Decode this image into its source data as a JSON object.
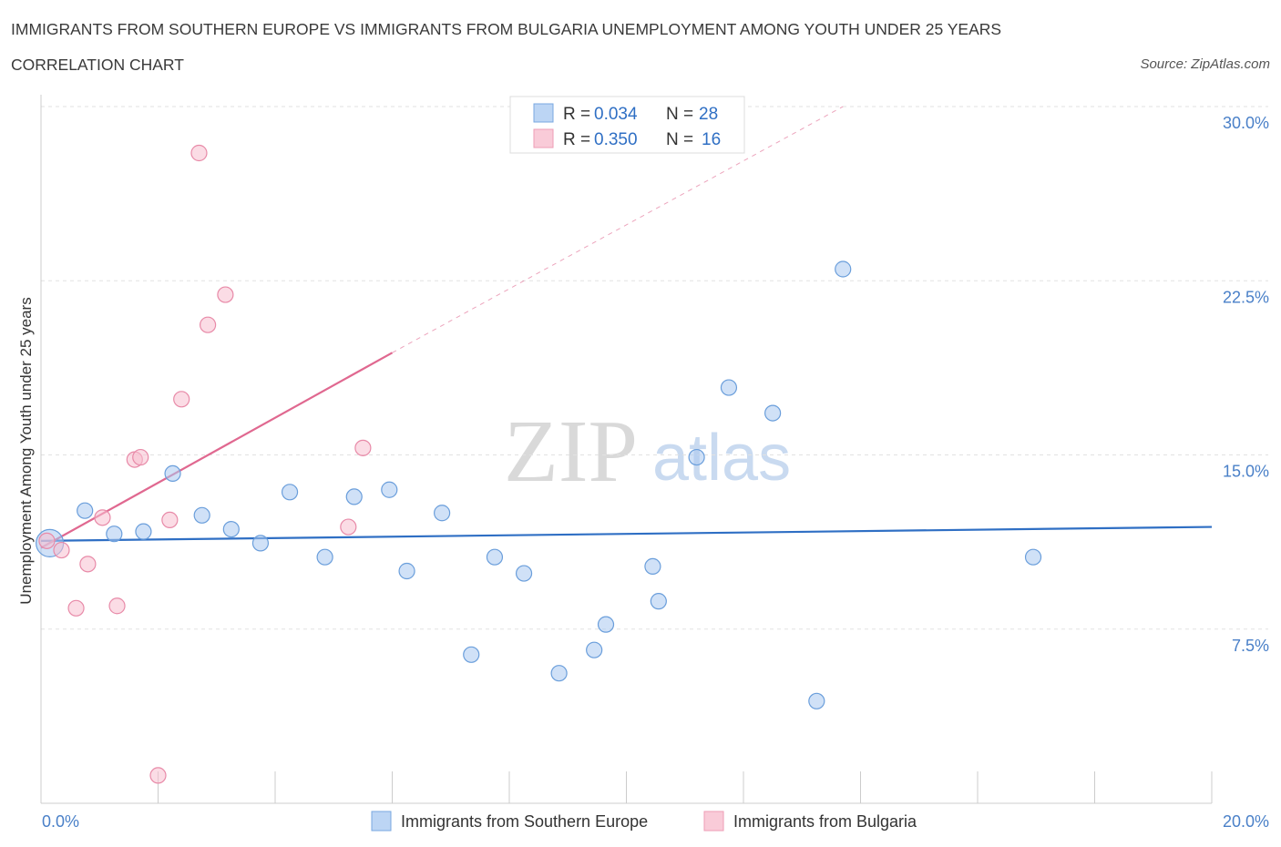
{
  "header": {
    "title": "IMMIGRANTS FROM SOUTHERN EUROPE VS IMMIGRANTS FROM BULGARIA UNEMPLOYMENT AMONG YOUTH UNDER 25 YEARS",
    "subtitle": "CORRELATION CHART",
    "source": "Source: ZipAtlas.com"
  },
  "watermark": {
    "zip": "ZIP",
    "atlas": "atlas"
  },
  "chart_data": {
    "type": "scatter",
    "title": "IMMIGRANTS FROM SOUTHERN EUROPE VS IMMIGRANTS FROM BULGARIA UNEMPLOYMENT AMONG YOUTH UNDER 25 YEARS",
    "xlabel": "",
    "ylabel": "Unemployment Among Youth under 25 years",
    "xlim": [
      0,
      20
    ],
    "ylim": [
      0,
      30
    ],
    "x_tick_labels": {
      "min": "0.0%",
      "max": "20.0%"
    },
    "y_ticks": [
      {
        "value": 7.5,
        "label": "7.5%"
      },
      {
        "value": 15,
        "label": "15.0%"
      },
      {
        "value": 22.5,
        "label": "22.5%"
      },
      {
        "value": 30,
        "label": "30.0%"
      }
    ],
    "legend": [
      {
        "name": "Immigrants from Southern Europe",
        "r_label": "R =",
        "r": "0.034",
        "n_label": "N =",
        "n": "28",
        "color": "#a9c8f0",
        "stroke": "#6a9edb"
      },
      {
        "name": "Immigrants from Bulgaria",
        "r_label": "R =",
        "r": "0.350",
        "n_label": "N =",
        "n": "16",
        "color": "#f7bfd0",
        "stroke": "#e88aa8"
      }
    ],
    "series": [
      {
        "name": "Immigrants from Southern Europe",
        "color": "#a9c8f0",
        "stroke": "#6a9edb",
        "line_color": "#2f6fc4",
        "trend": {
          "x0": 0.0,
          "y0": 11.3,
          "x1": 20.0,
          "y1": 11.9,
          "dashed_from": null
        },
        "points": [
          {
            "x": 0.15,
            "y": 11.2,
            "size": "large"
          },
          {
            "x": 0.75,
            "y": 12.6
          },
          {
            "x": 1.25,
            "y": 11.6
          },
          {
            "x": 1.75,
            "y": 11.7
          },
          {
            "x": 2.25,
            "y": 14.2
          },
          {
            "x": 2.75,
            "y": 12.4
          },
          {
            "x": 3.25,
            "y": 11.8
          },
          {
            "x": 3.75,
            "y": 11.2
          },
          {
            "x": 4.25,
            "y": 13.4
          },
          {
            "x": 4.85,
            "y": 10.6
          },
          {
            "x": 5.35,
            "y": 13.2
          },
          {
            "x": 5.95,
            "y": 13.5
          },
          {
            "x": 6.25,
            "y": 10.0
          },
          {
            "x": 6.85,
            "y": 12.5
          },
          {
            "x": 7.35,
            "y": 6.4
          },
          {
            "x": 7.75,
            "y": 10.6
          },
          {
            "x": 8.25,
            "y": 9.9
          },
          {
            "x": 8.85,
            "y": 5.6
          },
          {
            "x": 9.45,
            "y": 6.6
          },
          {
            "x": 9.65,
            "y": 7.7
          },
          {
            "x": 10.45,
            "y": 10.2
          },
          {
            "x": 10.55,
            "y": 8.7
          },
          {
            "x": 11.2,
            "y": 14.9
          },
          {
            "x": 11.75,
            "y": 17.9
          },
          {
            "x": 12.5,
            "y": 16.8
          },
          {
            "x": 13.25,
            "y": 4.4
          },
          {
            "x": 13.7,
            "y": 23.0
          },
          {
            "x": 16.95,
            "y": 10.6
          }
        ]
      },
      {
        "name": "Immigrants from Bulgaria",
        "color": "#f7bfd0",
        "stroke": "#e88aa8",
        "line_color": "#e06890",
        "trend": {
          "x0": 0.0,
          "y0": 11.0,
          "x1": 6.0,
          "y1": 19.4,
          "dash_x1": 13.7,
          "dash_y1": 30.0
        },
        "points": [
          {
            "x": 0.1,
            "y": 11.3
          },
          {
            "x": 0.35,
            "y": 10.9
          },
          {
            "x": 0.6,
            "y": 8.4
          },
          {
            "x": 0.8,
            "y": 10.3
          },
          {
            "x": 1.05,
            "y": 12.3
          },
          {
            "x": 1.3,
            "y": 8.5
          },
          {
            "x": 1.6,
            "y": 14.8
          },
          {
            "x": 1.7,
            "y": 14.9
          },
          {
            "x": 2.0,
            "y": 1.2
          },
          {
            "x": 2.2,
            "y": 12.2
          },
          {
            "x": 2.4,
            "y": 17.4
          },
          {
            "x": 2.7,
            "y": 28.0
          },
          {
            "x": 2.85,
            "y": 20.6
          },
          {
            "x": 3.15,
            "y": 21.9
          },
          {
            "x": 5.25,
            "y": 11.9
          },
          {
            "x": 5.5,
            "y": 15.3
          }
        ]
      }
    ]
  }
}
